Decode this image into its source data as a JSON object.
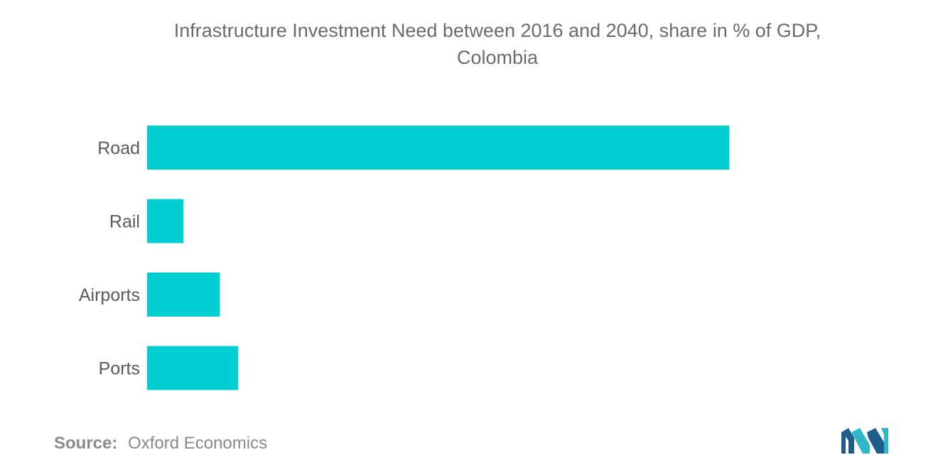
{
  "chart_data": {
    "type": "bar",
    "orientation": "horizontal",
    "title_lines": [
      "Infrastructure Investment Need between 2016 and 2040, share in % of GDP,",
      "Colombia"
    ],
    "categories": [
      "Road",
      "Rail",
      "Airports",
      "Ports"
    ],
    "values": [
      3.2,
      0.2,
      0.4,
      0.5
    ],
    "xlim": [
      0,
      3.8
    ],
    "xlabel": "",
    "ylabel": "",
    "grid": false,
    "legend": "none",
    "bar_color": "#00ced1",
    "label_color": "#5a5a5a"
  },
  "source": {
    "label": "Source:",
    "text": "Oxford Economics"
  },
  "logo": {
    "icon": "mordor-intelligence-logo-icon",
    "colors": [
      "#1f5e8c",
      "#2fb8c8"
    ]
  }
}
